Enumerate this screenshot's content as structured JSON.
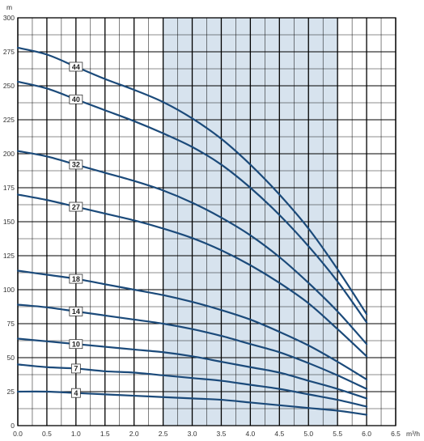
{
  "chart_data": {
    "type": "line",
    "title": "",
    "xlabel": "m³/h",
    "ylabel": "m",
    "xlim": [
      0,
      6.5
    ],
    "ylim": [
      0,
      300
    ],
    "x_ticks": [
      "0.0",
      "0.5",
      "1.0",
      "1.5",
      "2.0",
      "2.5",
      "3.0",
      "3.5",
      "4.0",
      "4.5",
      "5.0",
      "5.5",
      "6.0",
      "6.5"
    ],
    "y_ticks": [
      "0",
      "25",
      "50",
      "75",
      "100",
      "125",
      "150",
      "175",
      "200",
      "225",
      "250",
      "275",
      "300"
    ],
    "grid": true,
    "recommended_range": [
      2.5,
      5.5
    ],
    "colors": {
      "curve": "#1b4a7a",
      "band": "#d7e3ee",
      "grid": "#000000",
      "axis": "#000000"
    },
    "series": [
      {
        "name": "44",
        "x": [
          0,
          0.5,
          1.0,
          1.5,
          2.0,
          2.5,
          3.0,
          3.5,
          4.0,
          4.5,
          5.0,
          5.5,
          6.0
        ],
        "y": [
          278,
          273,
          264,
          255,
          247,
          238,
          226,
          211,
          192,
          170,
          145,
          115,
          82
        ]
      },
      {
        "name": "40",
        "x": [
          0,
          0.5,
          1.0,
          1.5,
          2.0,
          2.5,
          3.0,
          3.5,
          4.0,
          4.5,
          5.0,
          5.5,
          6.0
        ],
        "y": [
          253,
          248,
          240,
          232,
          224,
          215,
          205,
          192,
          175,
          155,
          132,
          106,
          76
        ]
      },
      {
        "name": "32",
        "x": [
          0,
          0.5,
          1.0,
          1.5,
          2.0,
          2.5,
          3.0,
          3.5,
          4.0,
          4.5,
          5.0,
          5.5,
          6.0
        ],
        "y": [
          202,
          198,
          192,
          186,
          180,
          173,
          164,
          153,
          140,
          124,
          105,
          84,
          60
        ]
      },
      {
        "name": "27",
        "x": [
          0,
          0.5,
          1.0,
          1.5,
          2.0,
          2.5,
          3.0,
          3.5,
          4.0,
          4.5,
          5.0,
          5.5,
          6.0
        ],
        "y": [
          170,
          166,
          161,
          156,
          151,
          145,
          138,
          129,
          118,
          105,
          90,
          71,
          51
        ]
      },
      {
        "name": "18",
        "x": [
          0,
          0.5,
          1.0,
          1.5,
          2.0,
          2.5,
          3.0,
          3.5,
          4.0,
          4.5,
          5.0,
          5.5,
          6.0
        ],
        "y": [
          114,
          111,
          108,
          104,
          100,
          96,
          91,
          85,
          78,
          69,
          59,
          47,
          34
        ]
      },
      {
        "name": "14",
        "x": [
          0,
          0.5,
          1.0,
          1.5,
          2.0,
          2.5,
          3.0,
          3.5,
          4.0,
          4.5,
          5.0,
          5.5,
          6.0
        ],
        "y": [
          89,
          87,
          84,
          81,
          78,
          75,
          71,
          66,
          60,
          54,
          46,
          37,
          27
        ]
      },
      {
        "name": "10",
        "x": [
          0,
          0.5,
          1.0,
          1.5,
          2.0,
          2.5,
          3.0,
          3.5,
          4.0,
          4.5,
          5.0,
          5.5,
          6.0
        ],
        "y": [
          64,
          62,
          60,
          58,
          56,
          54,
          51,
          47,
          43,
          39,
          33,
          27,
          20
        ]
      },
      {
        "name": "7",
        "x": [
          0,
          0.5,
          1.0,
          1.5,
          2.0,
          2.5,
          3.0,
          3.5,
          4.0,
          4.5,
          5.0,
          5.5,
          6.0
        ],
        "y": [
          45,
          43,
          42,
          40,
          39,
          37,
          35,
          33,
          30,
          27,
          23,
          19,
          14
        ]
      },
      {
        "name": "4",
        "x": [
          0,
          0.5,
          1.0,
          1.5,
          2.0,
          2.5,
          3.0,
          3.5,
          4.0,
          4.5,
          5.0,
          5.5,
          6.0
        ],
        "y": [
          25,
          25,
          24,
          23,
          22,
          21,
          20,
          19,
          17,
          15,
          13,
          11,
          8
        ]
      }
    ],
    "label_x": 1.0
  }
}
